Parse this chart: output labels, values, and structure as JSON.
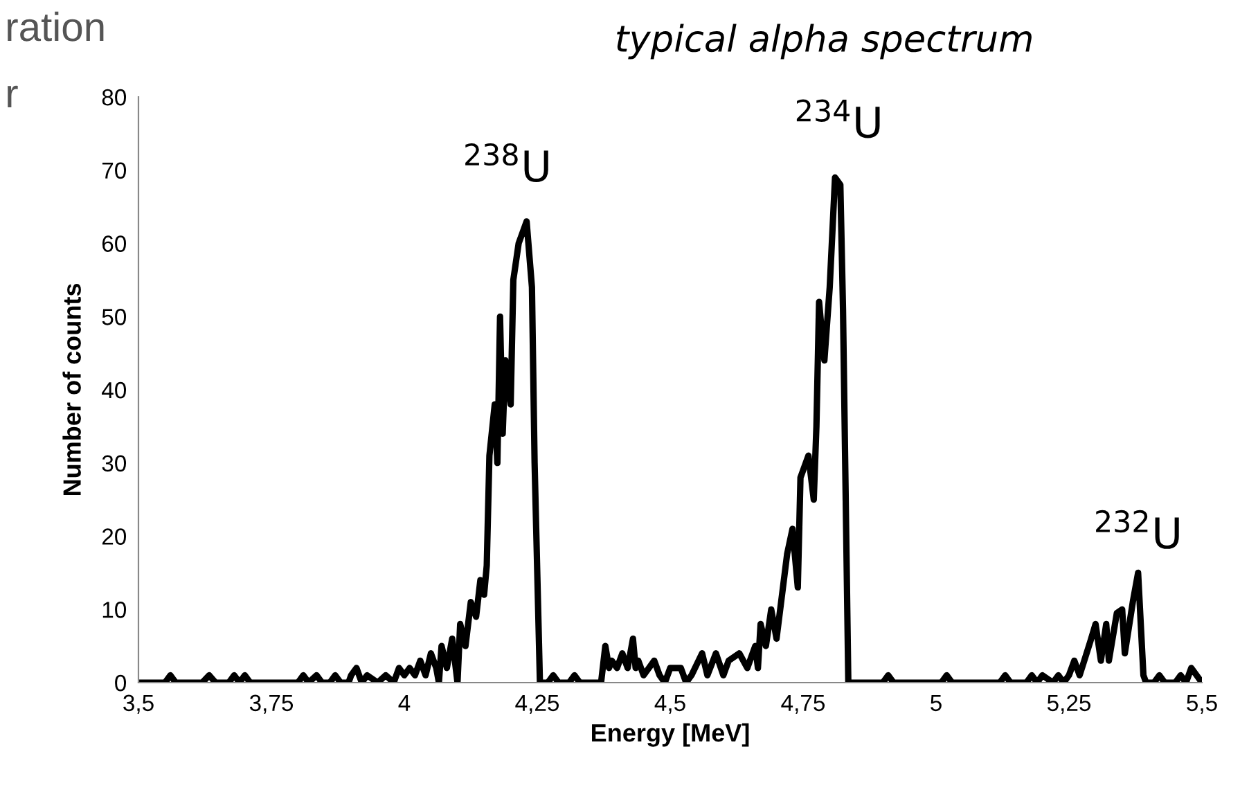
{
  "chart_data": {
    "type": "line",
    "title": "typical alpha spectrum",
    "xlabel": "Energy [MeV]",
    "ylabel": "Number of counts",
    "annotations": [
      "ration",
      "r",
      {
        "text": "$^{238}$U",
        "x": 4.23,
        "y": 63
      },
      {
        "text": "$^{234}$U",
        "x": 4.81,
        "y": 69
      },
      {
        "text": "$^{232}$U",
        "x": 5.38,
        "y": 15
      }
    ],
    "series": [
      {
        "color": "#000000",
        "x": [
          3.5,
          3.55,
          3.56,
          3.57,
          3.62,
          3.633,
          3.645,
          3.67,
          3.68,
          3.69,
          3.7,
          3.71,
          3.8,
          3.81,
          3.82,
          3.835,
          3.845,
          3.86,
          3.87,
          3.88,
          3.895,
          3.9,
          3.91,
          3.92,
          3.93,
          3.95,
          3.965,
          3.98,
          3.99,
          4.0,
          4.01,
          4.02,
          4.03,
          4.04,
          4.05,
          4.06,
          4.065,
          4.07,
          4.08,
          4.09,
          4.1,
          4.105,
          4.115,
          4.125,
          4.135,
          4.143,
          4.15,
          4.155,
          4.16,
          4.17,
          4.175,
          4.18,
          4.185,
          4.19,
          4.2,
          4.205,
          4.215,
          4.23,
          4.24,
          4.245,
          4.255,
          4.27,
          4.28,
          4.29,
          4.31,
          4.32,
          4.33,
          4.36,
          4.37,
          4.378,
          4.385,
          4.39,
          4.4,
          4.41,
          4.42,
          4.43,
          4.435,
          4.44,
          4.45,
          4.46,
          4.47,
          4.48,
          4.49,
          4.5,
          4.52,
          4.53,
          4.54,
          4.56,
          4.57,
          4.586,
          4.6,
          4.61,
          4.63,
          4.645,
          4.66,
          4.665,
          4.67,
          4.68,
          4.69,
          4.7,
          4.72,
          4.73,
          4.74,
          4.745,
          4.76,
          4.77,
          4.775,
          4.78,
          4.79,
          4.8,
          4.81,
          4.82,
          4.825,
          4.835,
          4.9,
          4.91,
          4.92,
          5.01,
          5.02,
          5.03,
          5.12,
          5.13,
          5.14,
          5.17,
          5.18,
          5.19,
          5.2,
          5.22,
          5.23,
          5.24,
          5.25,
          5.26,
          5.27,
          5.29,
          5.3,
          5.31,
          5.32,
          5.325,
          5.34,
          5.35,
          5.355,
          5.37,
          5.38,
          5.39,
          5.395,
          5.41,
          5.42,
          5.43,
          5.45,
          5.46,
          5.47,
          5.48,
          5.49,
          5.5
        ],
        "values": [
          0,
          0,
          1,
          0,
          0,
          1,
          0,
          0,
          1,
          0,
          1,
          0,
          0,
          1,
          0,
          1,
          0,
          0,
          1,
          0,
          0,
          1,
          2,
          0,
          1,
          0,
          1,
          0,
          2,
          1,
          2,
          1,
          3,
          1,
          4,
          2,
          0,
          5,
          2,
          6,
          0,
          8,
          5,
          11,
          9,
          14,
          12,
          16,
          31,
          38,
          30,
          50,
          34,
          44,
          38,
          55,
          60,
          63,
          54,
          30,
          0,
          0,
          1,
          0,
          0,
          1,
          0,
          0,
          0,
          5,
          2,
          3,
          2,
          4,
          2,
          6,
          2,
          3,
          1,
          2,
          3,
          1,
          0,
          2,
          2,
          0,
          1,
          4,
          1,
          4,
          1,
          3,
          4,
          2,
          5,
          2,
          8,
          5,
          10,
          6,
          17.6,
          21,
          13,
          28,
          31,
          25,
          35,
          52,
          44,
          54,
          69,
          68,
          51,
          0,
          0,
          1,
          0,
          0,
          1,
          0,
          0,
          1,
          0,
          0,
          1,
          0,
          1,
          0,
          1,
          0,
          1,
          3,
          1,
          5.6,
          8,
          3,
          8,
          3,
          9.5,
          10,
          4,
          11,
          15,
          1,
          0,
          0,
          1,
          0,
          0,
          1,
          0,
          2,
          1,
          0
        ]
      }
    ],
    "xlim": [
      3.5,
      5.5
    ],
    "xticks": [
      {
        "value": 3.5,
        "label": "3,5"
      },
      {
        "value": 3.75,
        "label": "3,75"
      },
      4,
      {
        "value": 4.25,
        "label": "4,25"
      },
      {
        "value": 4.5,
        "label": "4,5"
      },
      {
        "value": 4.75,
        "label": "4,75"
      },
      5,
      {
        "value": 5.25,
        "label": "5,25"
      },
      {
        "value": 5.5,
        "label": "5,5"
      }
    ],
    "ylim": [
      0,
      80
    ],
    "yticks": [
      0,
      10,
      20,
      30,
      40,
      50,
      60,
      70,
      80
    ],
    "grid": false,
    "legend": false,
    "marker": "none",
    "line_style": "solid"
  }
}
